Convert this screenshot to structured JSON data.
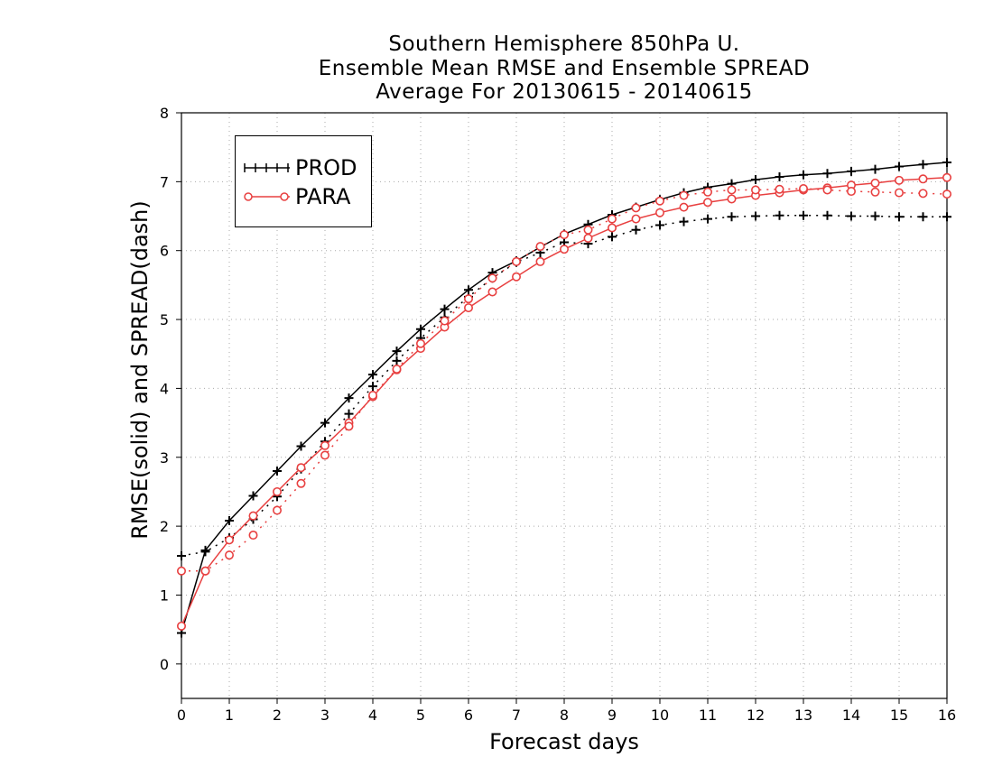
{
  "chart_data": {
    "type": "line",
    "title": [
      "Southern Hemisphere 850hPa U.",
      "Ensemble Mean RMSE and Ensemble SPREAD",
      "Average For 20130615 - 20140615"
    ],
    "xlabel": "Forecast days",
    "ylabel": "RMSE(solid) and SPREAD(dash)",
    "xlim": [
      0,
      16
    ],
    "ylim": [
      -0.5,
      8
    ],
    "x_ticks": [
      "0",
      "1",
      "2",
      "3",
      "4",
      "5",
      "6",
      "7",
      "8",
      "9",
      "10",
      "11",
      "12",
      "13",
      "14",
      "15",
      "16"
    ],
    "y_ticks": [
      "0",
      "1",
      "2",
      "3",
      "4",
      "5",
      "6",
      "7",
      "8"
    ],
    "grid": true,
    "legend_position": "top-left",
    "x": [
      0,
      0.5,
      1,
      1.5,
      2,
      2.5,
      3,
      3.5,
      4,
      4.5,
      5,
      5.5,
      6,
      6.5,
      7,
      7.5,
      8,
      8.5,
      9,
      9.5,
      10,
      10.5,
      11,
      11.5,
      12,
      12.5,
      13,
      13.5,
      14,
      14.5,
      15,
      15.5,
      16
    ],
    "series": [
      {
        "name": "PROD",
        "style": "solid",
        "marker": "plus",
        "color": "#000000",
        "values": [
          0.45,
          1.65,
          2.08,
          2.44,
          2.8,
          3.16,
          3.5,
          3.86,
          4.2,
          4.54,
          4.86,
          5.15,
          5.43,
          5.68,
          5.85,
          6.05,
          6.24,
          6.38,
          6.52,
          6.63,
          6.74,
          6.84,
          6.92,
          6.97,
          7.03,
          7.07,
          7.1,
          7.12,
          7.15,
          7.18,
          7.22,
          7.25,
          7.28
        ]
      },
      {
        "name": "PROD",
        "style": "dash",
        "marker": "plus",
        "color": "#000000",
        "values": [
          1.57,
          1.63,
          1.83,
          2.1,
          2.43,
          2.83,
          3.23,
          3.63,
          4.03,
          4.4,
          4.73,
          5.03,
          5.33,
          5.6,
          5.83,
          5.97,
          6.12,
          6.1,
          6.2,
          6.3,
          6.37,
          6.42,
          6.46,
          6.49,
          6.5,
          6.51,
          6.51,
          6.51,
          6.5,
          6.5,
          6.49,
          6.49,
          6.49
        ]
      },
      {
        "name": "PARA",
        "style": "solid",
        "marker": "circle",
        "color": "#e84040",
        "values": [
          0.55,
          1.35,
          1.8,
          2.15,
          2.5,
          2.85,
          3.17,
          3.5,
          3.88,
          4.27,
          4.58,
          4.89,
          5.17,
          5.4,
          5.62,
          5.84,
          6.02,
          6.18,
          6.33,
          6.46,
          6.55,
          6.63,
          6.7,
          6.75,
          6.8,
          6.84,
          6.88,
          6.91,
          6.95,
          6.98,
          7.02,
          7.04,
          7.06
        ]
      },
      {
        "name": "PARA",
        "style": "dash",
        "marker": "circle",
        "color": "#e84040",
        "values": [
          1.35,
          1.35,
          1.58,
          1.87,
          2.23,
          2.62,
          3.03,
          3.45,
          3.9,
          4.28,
          4.65,
          4.98,
          5.3,
          5.6,
          5.84,
          6.06,
          6.23,
          6.3,
          6.46,
          6.62,
          6.72,
          6.8,
          6.85,
          6.88,
          6.88,
          6.89,
          6.9,
          6.88,
          6.86,
          6.85,
          6.84,
          6.83,
          6.82
        ]
      }
    ]
  }
}
